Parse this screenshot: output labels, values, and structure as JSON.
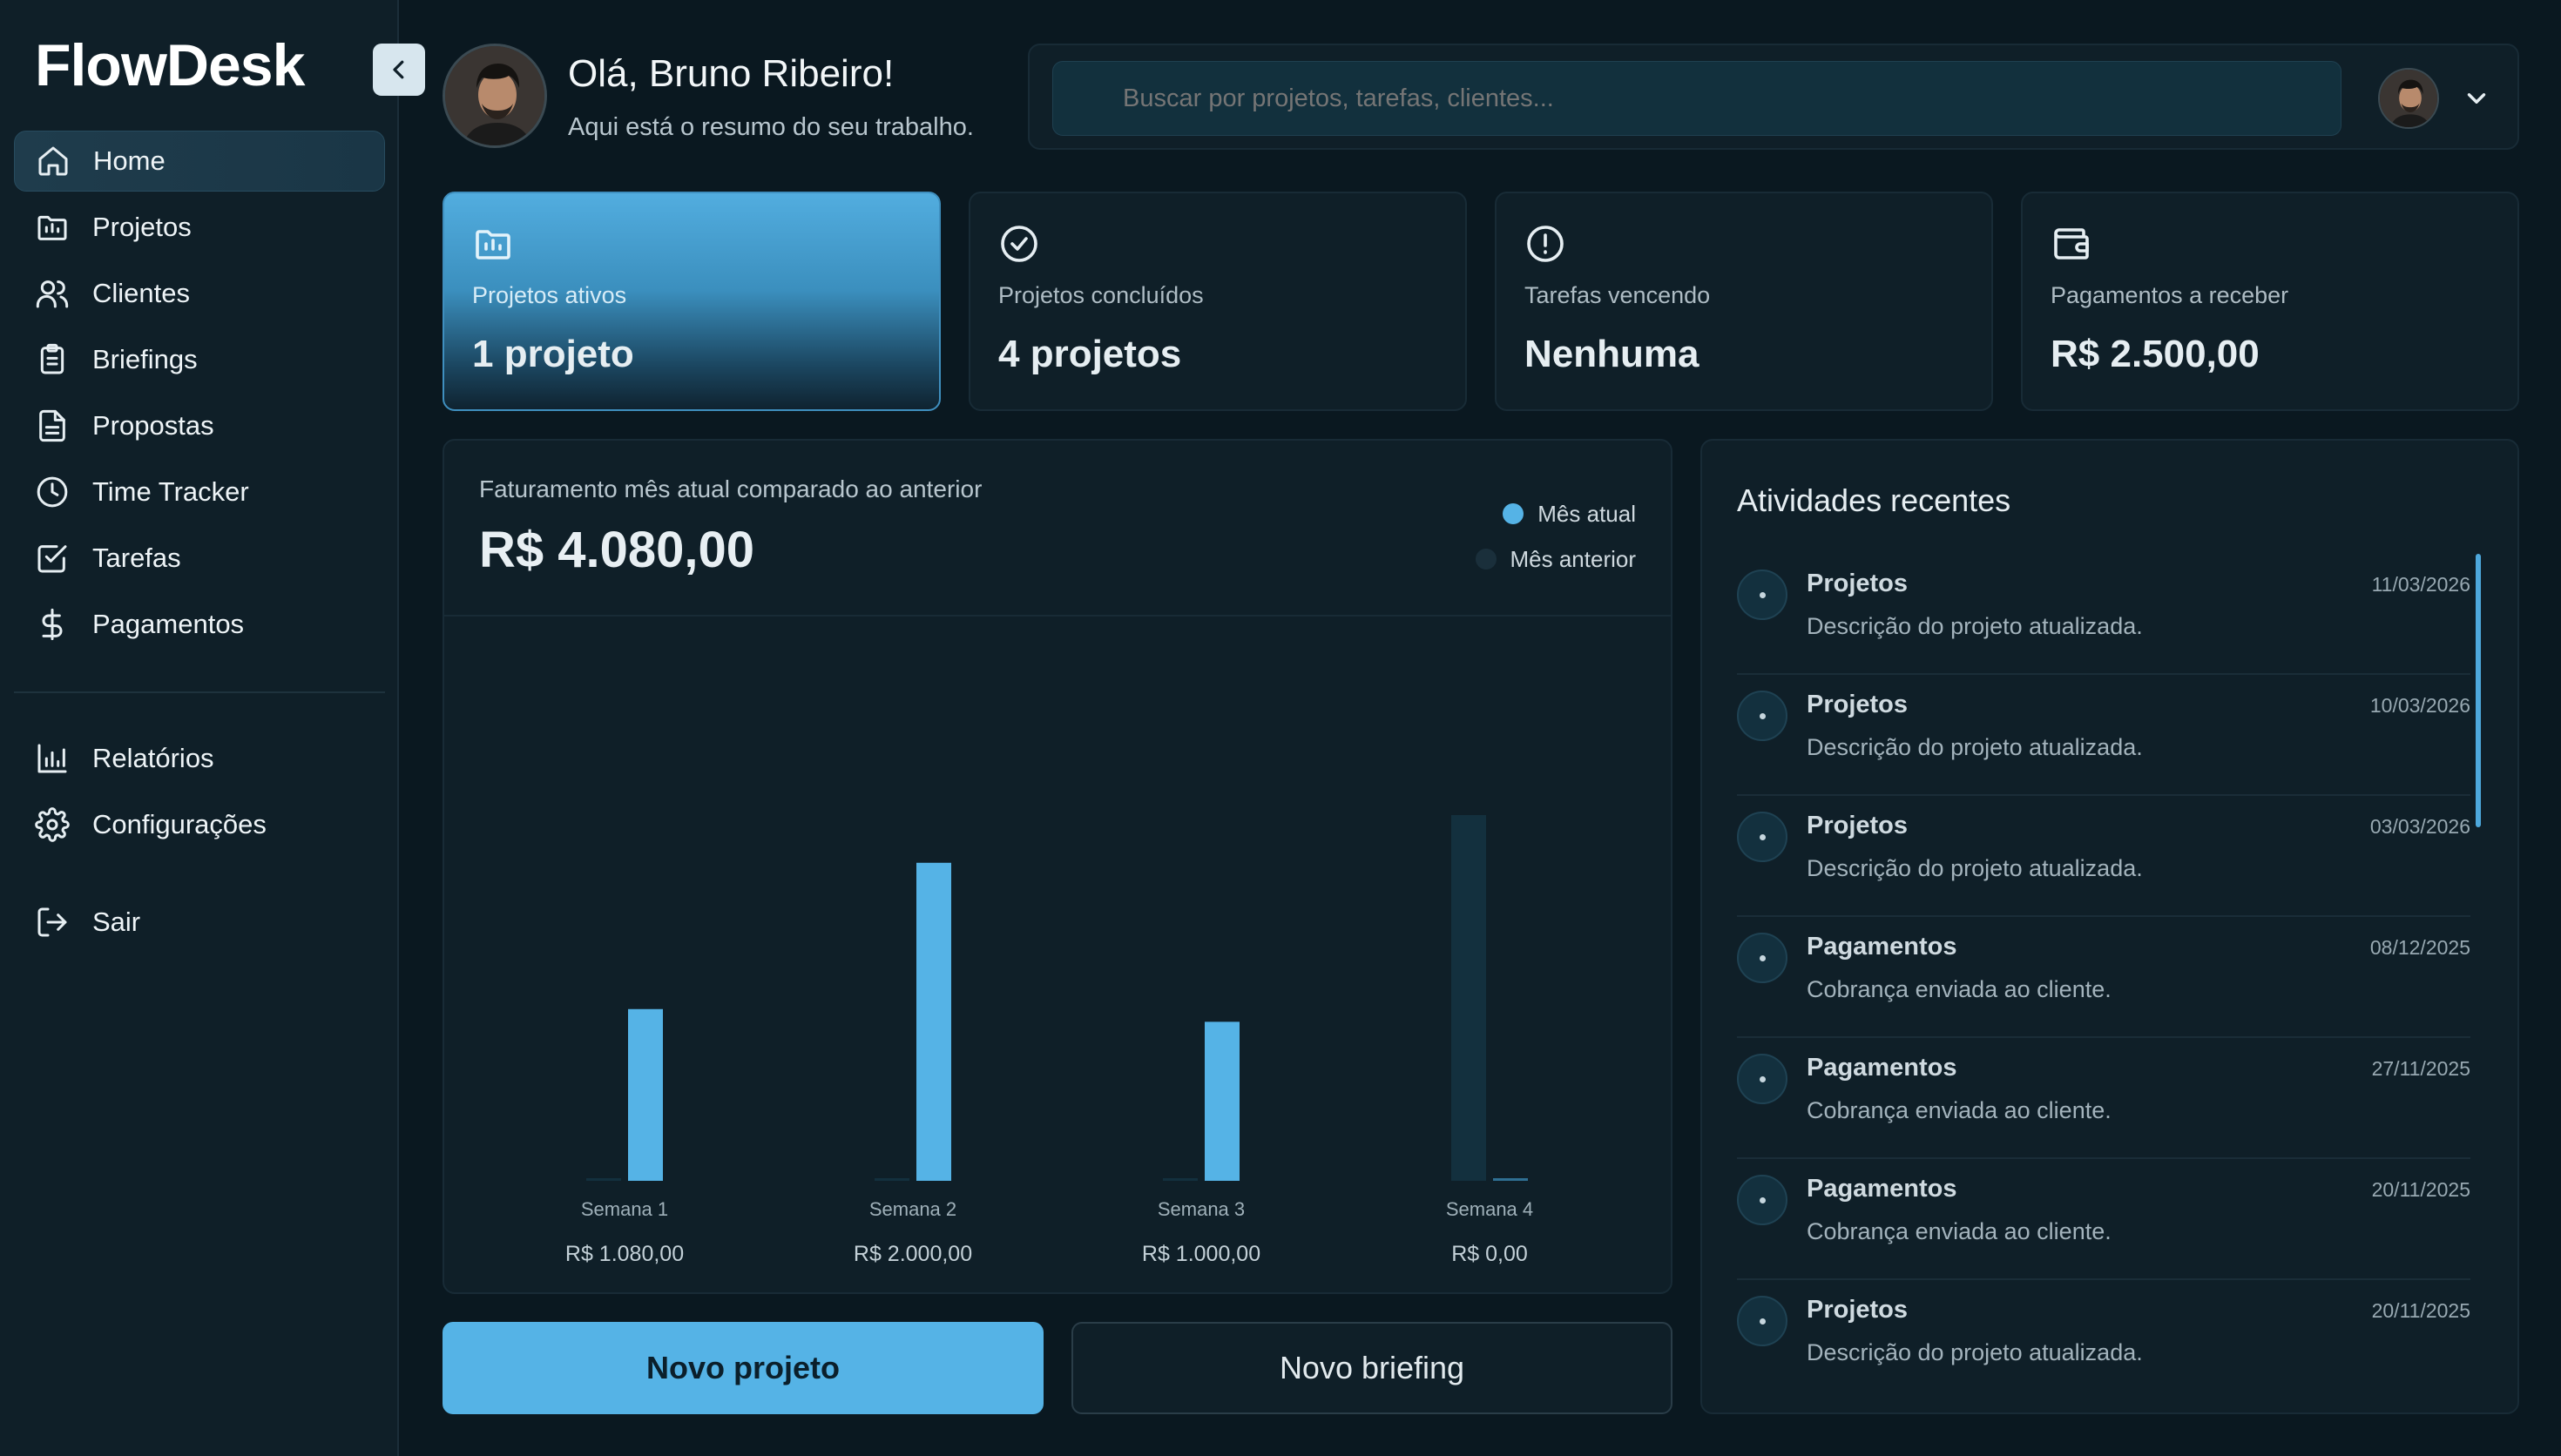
{
  "app": {
    "name": "FlowDesk"
  },
  "sidebar": {
    "items": [
      {
        "label": "Home",
        "icon": "home-icon",
        "active": true
      },
      {
        "label": "Projetos",
        "icon": "folder-icon"
      },
      {
        "label": "Clientes",
        "icon": "users-icon"
      },
      {
        "label": "Briefings",
        "icon": "clipboard-icon"
      },
      {
        "label": "Propostas",
        "icon": "document-icon"
      },
      {
        "label": "Time Tracker",
        "icon": "clock-icon"
      },
      {
        "label": "Tarefas",
        "icon": "checkbox-icon"
      },
      {
        "label": "Pagamentos",
        "icon": "dollar-icon"
      }
    ],
    "secondary": [
      {
        "label": "Relatórios",
        "icon": "bar-chart-icon"
      },
      {
        "label": "Configurações",
        "icon": "gear-icon"
      }
    ],
    "logout": {
      "label": "Sair",
      "icon": "logout-icon"
    }
  },
  "header": {
    "greeting": "Olá, Bruno Ribeiro!",
    "subtitle": "Aqui está o resumo do seu trabalho.",
    "search_placeholder": "Buscar por projetos, tarefas, clientes..."
  },
  "stats": [
    {
      "label": "Projetos ativos",
      "value": "1 projeto",
      "icon": "folder-chart-icon"
    },
    {
      "label": "Projetos concluídos",
      "value": "4 projetos",
      "icon": "check-circle-icon"
    },
    {
      "label": "Tarefas vencendo",
      "value": "Nenhuma",
      "icon": "alert-circle-icon"
    },
    {
      "label": "Pagamentos a receber",
      "value": "R$ 2.500,00",
      "icon": "wallet-icon"
    }
  ],
  "revenue": {
    "title": "Faturamento mês atual comparado ao anterior",
    "total": "R$ 4.080,00",
    "legend": [
      {
        "label": "Mês atual",
        "color": "#55b3e6"
      },
      {
        "label": "Mês anterior",
        "color": "#1a2f3b"
      }
    ]
  },
  "chart_data": {
    "type": "bar",
    "categories": [
      "Semana 1",
      "Semana 2",
      "Semana 3",
      "Semana 4"
    ],
    "category_values": [
      "R$ 1.080,00",
      "R$ 2.000,00",
      "R$ 1.000,00",
      "R$ 0,00"
    ],
    "series": [
      {
        "name": "Mês atual",
        "values": [
          1080,
          2000,
          1000,
          0
        ],
        "color": "#55b3e6"
      },
      {
        "name": "Mês anterior",
        "values": [
          0,
          0,
          0,
          2300
        ],
        "color": "#13303e"
      }
    ],
    "ylim": [
      0,
      2300
    ],
    "grid": false,
    "legend_position": "top-right"
  },
  "actions": {
    "primary": "Novo projeto",
    "secondary": "Novo briefing"
  },
  "activities": {
    "title": "Atividades recentes",
    "items": [
      {
        "name": "Projetos",
        "desc": "Descrição do projeto atualizada.",
        "date": "11/03/2026"
      },
      {
        "name": "Projetos",
        "desc": "Descrição do projeto atualizada.",
        "date": "10/03/2026"
      },
      {
        "name": "Projetos",
        "desc": "Descrição do projeto atualizada.",
        "date": "03/03/2026"
      },
      {
        "name": "Pagamentos",
        "desc": "Cobrança enviada ao cliente.",
        "date": "08/12/2025"
      },
      {
        "name": "Pagamentos",
        "desc": "Cobrança enviada ao cliente.",
        "date": "27/11/2025"
      },
      {
        "name": "Pagamentos",
        "desc": "Cobrança enviada ao cliente.",
        "date": "20/11/2025"
      },
      {
        "name": "Projetos",
        "desc": "Descrição do projeto atualizada.",
        "date": "20/11/2025"
      }
    ]
  }
}
